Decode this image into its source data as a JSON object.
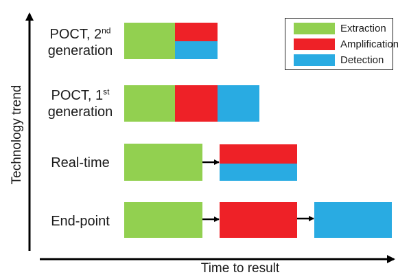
{
  "axes": {
    "y_label": "Technology trend",
    "x_label": "Time to result"
  },
  "legend": [
    {
      "label": "Extraction",
      "color": "#92d050"
    },
    {
      "label": "Amplification",
      "color": "#ee2127"
    },
    {
      "label": "Detection",
      "color": "#29abe2"
    }
  ],
  "rows": [
    {
      "id": "poct2",
      "label_main": "POCT, 2",
      "label_sup": "nd",
      "label_line2": "generation",
      "layout": "stacked-short"
    },
    {
      "id": "poct1",
      "label_main": "POCT, 1",
      "label_sup": "st",
      "label_line2": "generation",
      "layout": "sequential-short"
    },
    {
      "id": "realtime",
      "label_main": "Real-time",
      "layout": "arrow-stacked"
    },
    {
      "id": "endpoint",
      "label_main": "End-point",
      "layout": "arrow-sequential"
    }
  ]
}
